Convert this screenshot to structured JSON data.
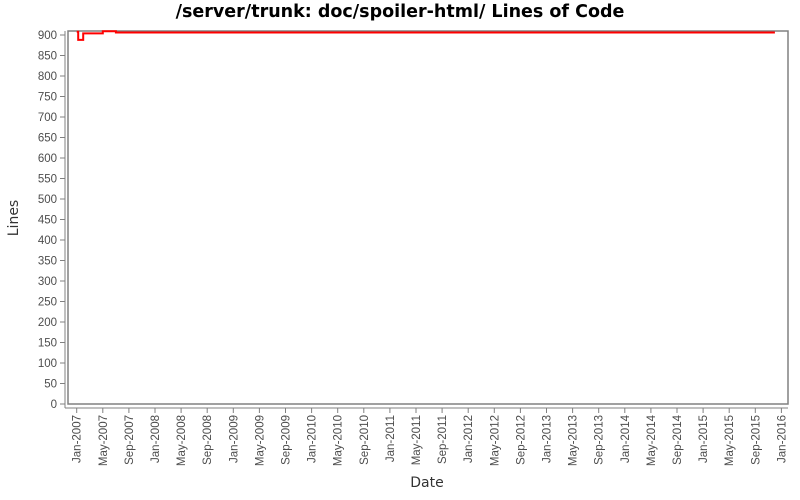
{
  "chart_data": {
    "type": "line",
    "title": "/server/trunk: doc/spoiler-html/ Lines of Code",
    "xlabel": "Date",
    "ylabel": "Lines",
    "ylim": [
      0,
      910
    ],
    "grid": false,
    "legend": false,
    "line_color": "#ff0000",
    "axis_color": "#808080",
    "text_color": "#4d4d4d",
    "y_ticks": [
      0,
      50,
      100,
      150,
      200,
      250,
      300,
      350,
      400,
      450,
      500,
      550,
      600,
      650,
      700,
      750,
      800,
      850,
      900
    ],
    "x_ticks": [
      "Jan-2007",
      "May-2007",
      "Sep-2007",
      "Jan-2008",
      "May-2008",
      "Sep-2008",
      "Jan-2009",
      "May-2009",
      "Sep-2009",
      "Jan-2010",
      "May-2010",
      "Sep-2010",
      "Jan-2011",
      "May-2011",
      "Sep-2011",
      "Jan-2012",
      "May-2012",
      "Sep-2012",
      "Jan-2013",
      "May-2013",
      "Sep-2013",
      "Jan-2014",
      "May-2014",
      "Sep-2014",
      "Jan-2015",
      "May-2015",
      "Sep-2015",
      "Jan-2016"
    ],
    "x_tick_interval_months": 4,
    "series": [
      {
        "name": "Lines of Code",
        "step": true,
        "points": [
          {
            "date": "2007-01",
            "value": 908
          },
          {
            "date": "2007-01-08",
            "value": 888
          },
          {
            "date": "2007-02",
            "value": 904
          },
          {
            "date": "2007-05",
            "value": 909
          },
          {
            "date": "2007-07",
            "value": 906
          },
          {
            "date": "2015-12",
            "value": 906
          }
        ]
      }
    ]
  }
}
